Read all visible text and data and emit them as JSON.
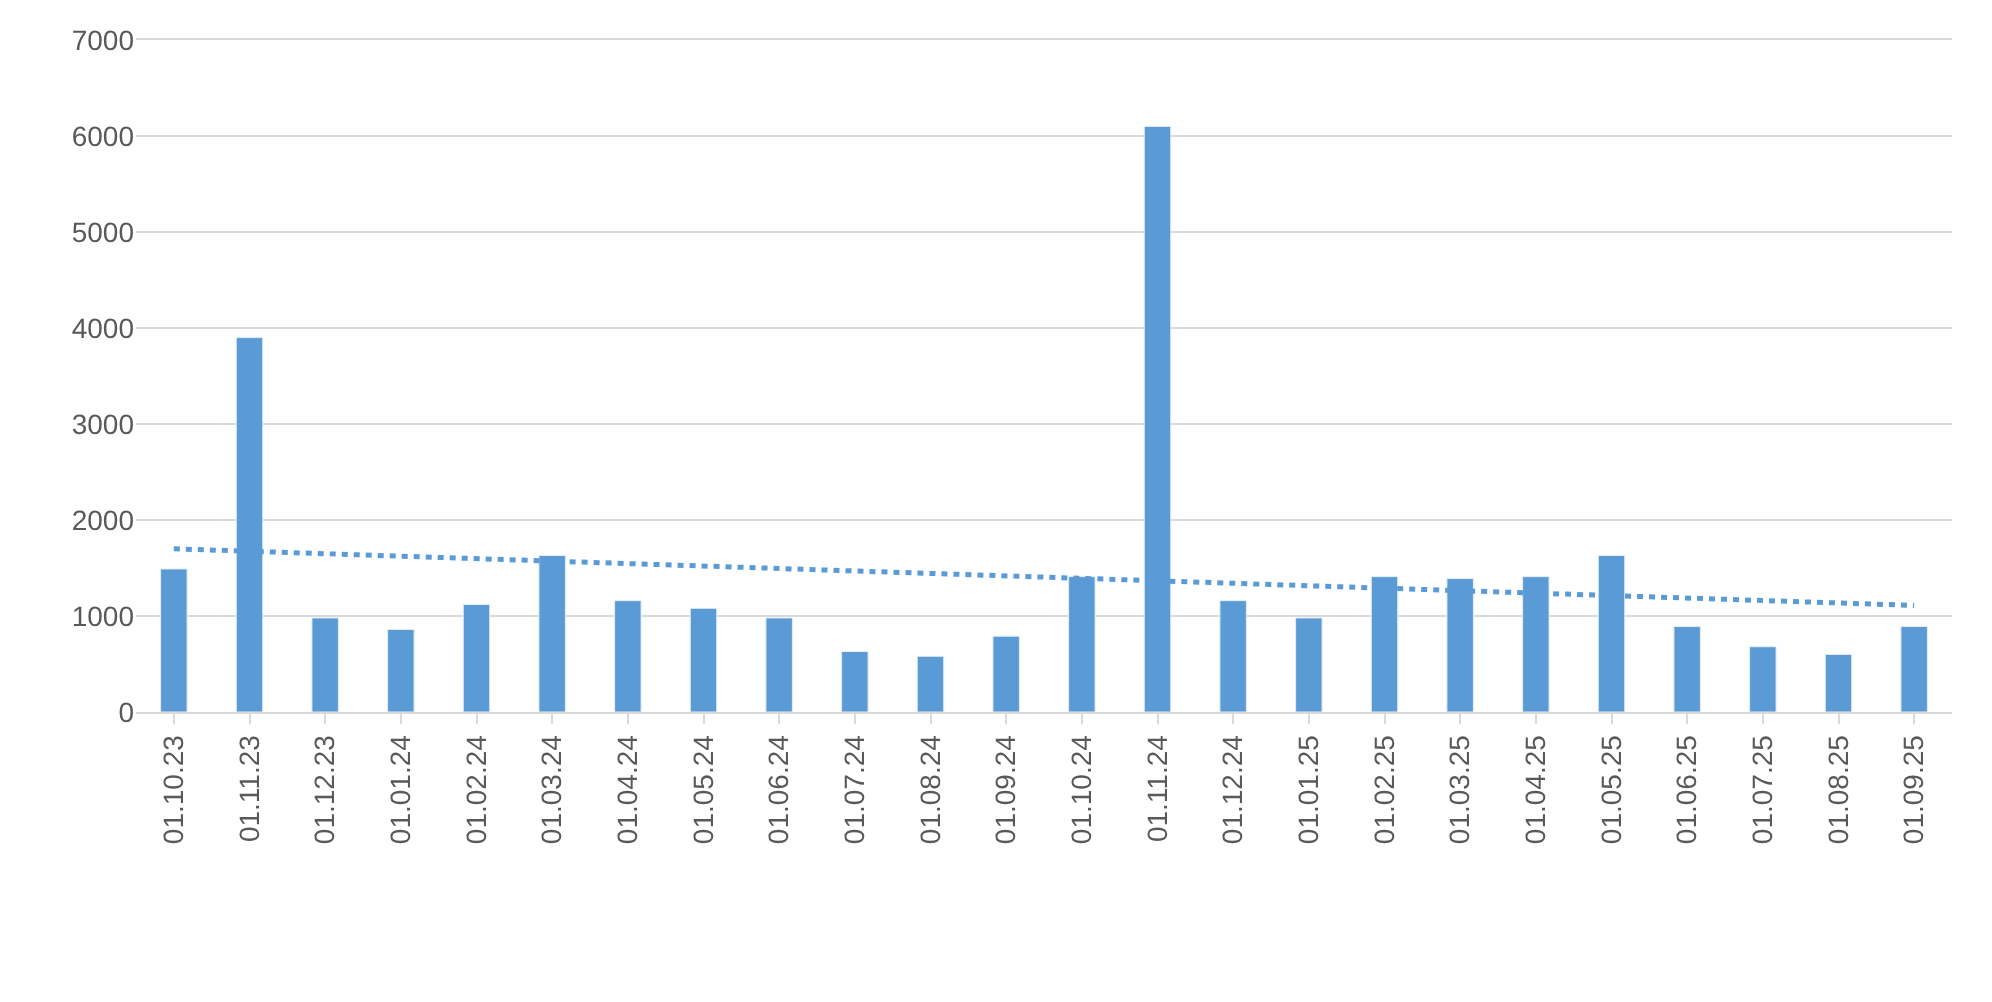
{
  "chart_data": {
    "type": "bar",
    "categories": [
      "01.10.23",
      "01.11.23",
      "01.12.23",
      "01.01.24",
      "01.02.24",
      "01.03.24",
      "01.04.24",
      "01.05.24",
      "01.06.24",
      "01.07.24",
      "01.08.24",
      "01.09.24",
      "01.10.24",
      "01.11.24",
      "01.12.24",
      "01.01.25",
      "01.02.25",
      "01.03.25",
      "01.04.25",
      "01.05.25",
      "01.06.25",
      "01.07.25",
      "01.08.25",
      "01.09.25"
    ],
    "series": [
      {
        "color": "#5b9bd5",
        "values": [
          1490,
          3900,
          980,
          860,
          1120,
          1630,
          1160,
          1080,
          980,
          630,
          580,
          790,
          1410,
          6100,
          1160,
          980,
          1410,
          1390,
          1410,
          1630,
          890,
          680,
          600,
          890
        ]
      },
      {
        "type": "line",
        "color": "#5b9bd5",
        "line_style": "dotted",
        "marker": "none",
        "x": [
          "01.10.23",
          "01.09.25"
        ],
        "values": [
          1700,
          1110
        ]
      }
    ],
    "ylim": [
      0,
      7000
    ],
    "yticks": [
      0,
      1000,
      2000,
      3000,
      4000,
      5000,
      6000,
      7000
    ],
    "grid": "y"
  }
}
